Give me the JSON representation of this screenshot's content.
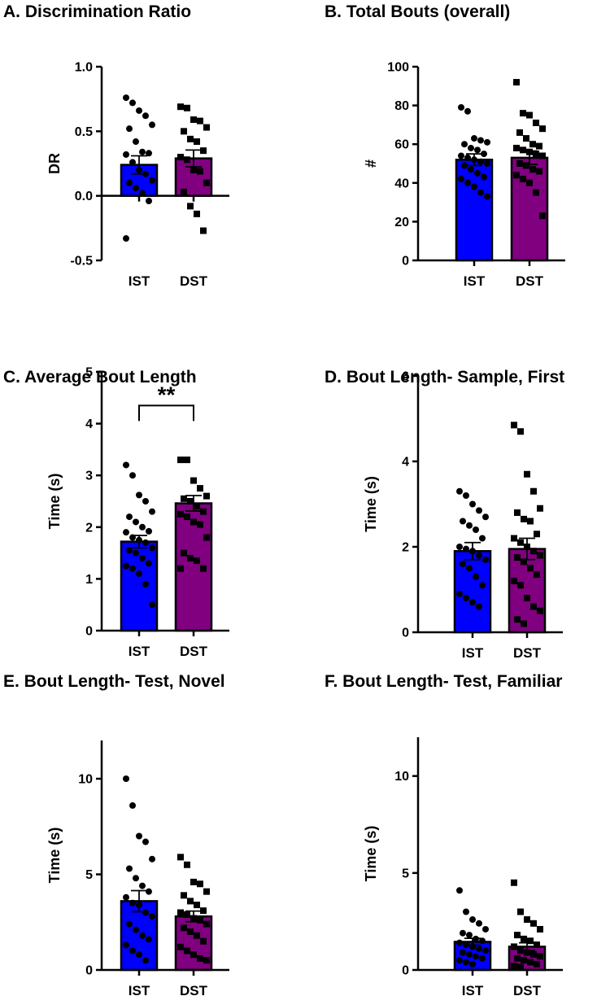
{
  "chart_data": [
    {
      "type": "bar",
      "title": "A. Discrimination Ratio",
      "ylabel": "DR",
      "ylim": [
        -0.5,
        1.0
      ],
      "yticks": [
        -0.5,
        0.0,
        0.5,
        1.0
      ],
      "ytick_labels": [
        "-0.5",
        "0.0",
        "0.5",
        "1.0"
      ],
      "categories": [
        "IST",
        "DST"
      ],
      "values": [
        0.24,
        0.29
      ],
      "error": [
        0.07,
        0.065
      ],
      "colors": [
        "#0000ff",
        "#800080"
      ],
      "markers": [
        "circle",
        "square"
      ],
      "points": [
        [
          0.76,
          0.72,
          0.66,
          0.62,
          0.55,
          0.52,
          0.42,
          0.34,
          0.33,
          0.32,
          0.26,
          0.2,
          0.17,
          0.12,
          0.1,
          0.06,
          0.02,
          -0.04,
          -0.33
        ],
        [
          0.69,
          0.68,
          0.59,
          0.58,
          0.53,
          0.5,
          0.44,
          0.42,
          0.35,
          0.3,
          0.28,
          0.2,
          0.19,
          0.1,
          0.03,
          -0.08,
          -0.14,
          -0.27
        ]
      ],
      "significance": null
    },
    {
      "type": "bar",
      "title": "B. Total Bouts (overall)",
      "ylabel": "#",
      "ylim": [
        0,
        100
      ],
      "yticks": [
        0,
        20,
        40,
        60,
        80,
        100
      ],
      "ytick_labels": [
        "0",
        "20",
        "40",
        "60",
        "80",
        "100"
      ],
      "categories": [
        "IST",
        "DST"
      ],
      "values": [
        52,
        53
      ],
      "error": [
        3,
        3.5
      ],
      "colors": [
        "#0000ff",
        "#800080"
      ],
      "markers": [
        "circle",
        "square"
      ],
      "points": [
        [
          79,
          77,
          63,
          62,
          61,
          60,
          58,
          57,
          55,
          54,
          53,
          52,
          51,
          50,
          49,
          47,
          45,
          43,
          42,
          40,
          38,
          35,
          33
        ],
        [
          92,
          76,
          75,
          71,
          68,
          66,
          63,
          60,
          59,
          58,
          57,
          56,
          55,
          54,
          50,
          49,
          47,
          46,
          44,
          42,
          40,
          35,
          23
        ]
      ],
      "significance": null
    },
    {
      "type": "bar",
      "title": "C. Average Bout Length",
      "ylabel": "Time (s)",
      "ylim": [
        0,
        5
      ],
      "yticks": [
        0,
        1,
        2,
        3,
        4,
        5
      ],
      "ytick_labels": [
        "0",
        "1",
        "2",
        "3",
        "4",
        "5"
      ],
      "categories": [
        "IST",
        "DST"
      ],
      "values": [
        1.72,
        2.46
      ],
      "error": [
        0.12,
        0.15
      ],
      "colors": [
        "#0000ff",
        "#800080"
      ],
      "markers": [
        "circle",
        "square"
      ],
      "points": [
        [
          3.2,
          3.0,
          2.62,
          2.5,
          2.3,
          2.2,
          2.1,
          2.0,
          1.92,
          1.9,
          1.8,
          1.75,
          1.7,
          1.6,
          1.55,
          1.5,
          1.4,
          1.3,
          1.25,
          1.2,
          1.1,
          0.9,
          0.5
        ],
        [
          3.3,
          3.3,
          2.9,
          2.75,
          2.6,
          2.55,
          2.5,
          2.4,
          2.3,
          2.25,
          2.2,
          2.1,
          2.05,
          1.8,
          1.5,
          1.4,
          1.35,
          1.2,
          1.2
        ]
      ],
      "significance": {
        "pair": [
          "IST",
          "DST"
        ],
        "label": "**"
      }
    },
    {
      "type": "bar",
      "title": "D. Bout Length- Sample, First",
      "ylabel": "Time (s)",
      "ylim": [
        0,
        6
      ],
      "yticks": [
        0,
        2,
        4,
        6
      ],
      "ytick_labels": [
        "0",
        "2",
        "4",
        "6"
      ],
      "categories": [
        "IST",
        "DST"
      ],
      "values": [
        1.9,
        1.95
      ],
      "error": [
        0.2,
        0.25
      ],
      "colors": [
        "#0000ff",
        "#800080"
      ],
      "markers": [
        "circle",
        "square"
      ],
      "points": [
        [
          3.3,
          3.2,
          3.0,
          2.85,
          2.7,
          2.6,
          2.5,
          2.4,
          2.2,
          2.0,
          1.95,
          1.9,
          1.8,
          1.7,
          1.6,
          1.5,
          1.3,
          1.1,
          0.9,
          0.8,
          0.7,
          0.6
        ],
        [
          4.85,
          4.7,
          3.7,
          3.3,
          2.9,
          2.8,
          2.65,
          2.6,
          2.3,
          2.2,
          2.1,
          2.0,
          1.9,
          1.8,
          1.75,
          1.65,
          1.5,
          1.35,
          1.2,
          1.1,
          0.8,
          0.6,
          0.5,
          0.3,
          0.2
        ]
      ],
      "significance": null
    },
    {
      "type": "bar",
      "title": "E. Bout Length- Test, Novel",
      "ylabel": "Time (s)",
      "ylim": [
        0,
        12
      ],
      "yticks": [
        0,
        5,
        10
      ],
      "ytick_labels": [
        "0",
        "5",
        "10"
      ],
      "categories": [
        "IST",
        "DST"
      ],
      "values": [
        3.6,
        2.8
      ],
      "error": [
        0.55,
        0.28
      ],
      "colors": [
        "#0000ff",
        "#800080"
      ],
      "markers": [
        "circle",
        "square"
      ],
      "points": [
        [
          10.0,
          8.6,
          7.0,
          6.7,
          5.8,
          5.3,
          4.8,
          4.4,
          4.1,
          3.8,
          3.5,
          3.4,
          3.0,
          2.8,
          2.4,
          2.1,
          1.8,
          1.6,
          1.3,
          1.0,
          0.8,
          0.5
        ],
        [
          5.9,
          5.5,
          4.6,
          4.5,
          4.1,
          3.9,
          3.6,
          3.4,
          3.1,
          3.0,
          2.9,
          2.7,
          2.6,
          2.4,
          2.2,
          2.0,
          1.8,
          1.5,
          1.2,
          1.0,
          0.8,
          0.6,
          0.5
        ]
      ],
      "significance": null
    },
    {
      "type": "bar",
      "title": "F. Bout Length- Test, Familiar",
      "ylabel": "Time (s)",
      "ylim": [
        0,
        12
      ],
      "yticks": [
        0,
        5,
        10
      ],
      "ytick_labels": [
        "0",
        "5",
        "10"
      ],
      "categories": [
        "IST",
        "DST"
      ],
      "values": [
        1.45,
        1.2
      ],
      "error": [
        0.18,
        0.2
      ],
      "colors": [
        "#0000ff",
        "#800080"
      ],
      "markers": [
        "circle",
        "square"
      ],
      "points": [
        [
          4.1,
          3.0,
          2.6,
          2.4,
          2.1,
          1.9,
          1.8,
          1.6,
          1.5,
          1.4,
          1.3,
          1.2,
          1.1,
          1.0,
          0.9,
          0.8,
          0.7,
          0.6,
          0.5,
          0.4,
          0.3
        ],
        [
          4.5,
          3.0,
          2.6,
          2.4,
          2.1,
          1.8,
          1.6,
          1.5,
          1.3,
          1.2,
          1.0,
          0.9,
          0.8,
          0.7,
          0.6,
          0.5,
          0.4,
          0.3,
          0.2,
          0.15
        ]
      ],
      "significance": null
    }
  ]
}
